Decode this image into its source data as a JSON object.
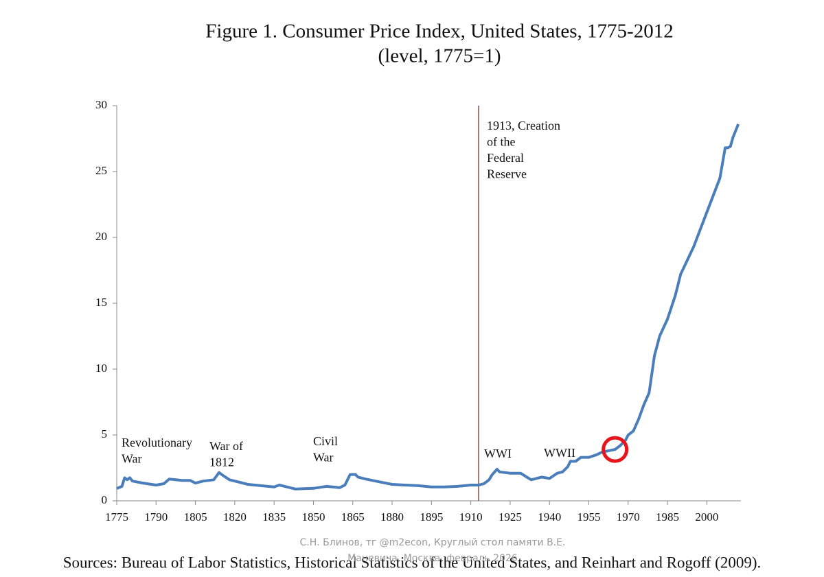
{
  "chart_data": {
    "type": "line",
    "title": "Figure 1. Consumer Price Index, United States, 1775-2012",
    "subtitle": "(level, 1775=1)",
    "source": "Sources: Bureau of Labor Statistics, Historical Statistics of the United States, and Reinhart and Rogoff (2009).",
    "watermark": [
      "С.Н. Блинов, тг @m2econ, Круглый стол памяти В.Е.",
      "Маневича, Москва, февраль 2026"
    ],
    "x": [
      1775,
      1777,
      1778,
      1779,
      1780,
      1781,
      1785,
      1790,
      1793,
      1795,
      1800,
      1803,
      1805,
      1808,
      1812,
      1814,
      1815,
      1818,
      1820,
      1825,
      1830,
      1835,
      1837,
      1840,
      1843,
      1850,
      1855,
      1860,
      1862,
      1864,
      1866,
      1867,
      1870,
      1875,
      1880,
      1885,
      1890,
      1895,
      1900,
      1905,
      1910,
      1913,
      1915,
      1917,
      1918,
      1920,
      1921,
      1925,
      1929,
      1933,
      1937,
      1940,
      1943,
      1945,
      1947,
      1948,
      1950,
      1952,
      1955,
      1958,
      1960,
      1965,
      1967,
      1969,
      1970,
      1972,
      1974,
      1976,
      1978,
      1980,
      1982,
      1985,
      1988,
      1990,
      1995,
      2000,
      2005,
      2007,
      2008,
      2009,
      2010,
      2012
    ],
    "values": [
      0.94,
      1.1,
      1.75,
      1.6,
      1.75,
      1.5,
      1.35,
      1.2,
      1.3,
      1.65,
      1.55,
      1.55,
      1.35,
      1.5,
      1.6,
      2.15,
      2.0,
      1.6,
      1.5,
      1.25,
      1.15,
      1.05,
      1.2,
      1.05,
      0.9,
      0.95,
      1.1,
      1.0,
      1.2,
      2.0,
      2.0,
      1.8,
      1.65,
      1.45,
      1.25,
      1.2,
      1.15,
      1.05,
      1.05,
      1.1,
      1.2,
      1.2,
      1.3,
      1.6,
      1.95,
      2.4,
      2.2,
      2.1,
      2.1,
      1.6,
      1.8,
      1.7,
      2.1,
      2.2,
      2.6,
      3.0,
      3.0,
      3.3,
      3.3,
      3.5,
      3.7,
      3.9,
      4.2,
      4.6,
      5.0,
      5.3,
      6.2,
      7.3,
      8.2,
      11.0,
      12.5,
      13.8,
      15.6,
      17.2,
      19.3,
      21.9,
      24.5,
      26.8,
      26.8,
      26.9,
      27.6,
      28.6
    ],
    "color": "#4a7ebb",
    "xlim": [
      1775,
      2013
    ],
    "ylim": [
      0,
      30
    ],
    "xticks": [
      1775,
      1790,
      1805,
      1820,
      1835,
      1850,
      1865,
      1880,
      1895,
      1910,
      1925,
      1940,
      1955,
      1970,
      1985,
      2000
    ],
    "yticks": [
      0,
      5,
      10,
      15,
      20,
      25,
      30
    ],
    "vline": {
      "x": 1913,
      "color": "#8b4a3c"
    },
    "highlight": {
      "x": 1965,
      "y": 3.9,
      "color": "#e8141b"
    },
    "annotations": [
      {
        "lines": [
          "Revolutionary",
          "War"
        ]
      },
      {
        "lines": [
          "War of",
          "1812"
        ]
      },
      {
        "lines": [
          "Civil",
          "War"
        ]
      },
      {
        "lines": [
          "1913, Creation",
          "of the",
          "Federal",
          "Reserve"
        ]
      },
      {
        "lines": [
          "WWI"
        ]
      },
      {
        "lines": [
          "WWII"
        ]
      }
    ]
  }
}
